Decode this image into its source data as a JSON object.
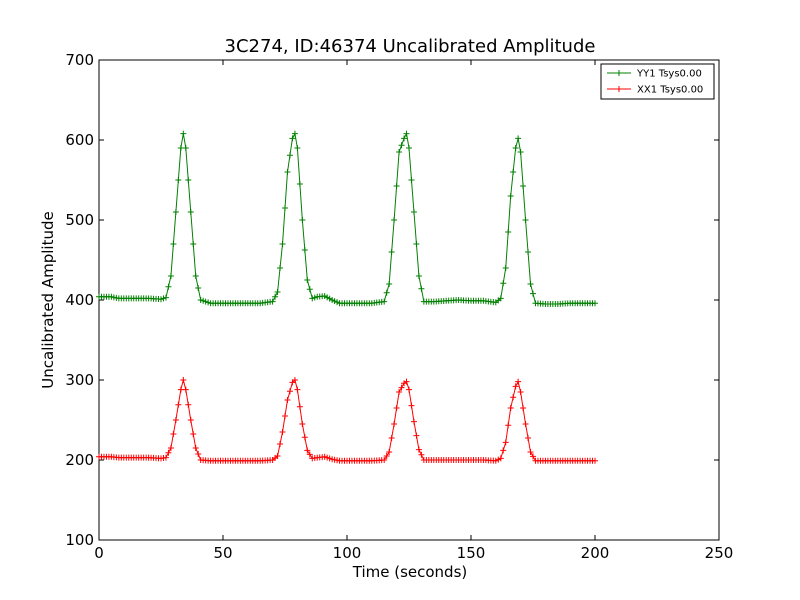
{
  "chart_data": {
    "type": "line",
    "title": "3C274, ID:46374 Uncalibrated Amplitude",
    "xlabel": "Time (seconds)",
    "ylabel": "Uncalibrated Amplitude",
    "xlim": [
      0,
      250
    ],
    "ylim": [
      100,
      700
    ],
    "xticks": [
      "0",
      "50",
      "100",
      "150",
      "200",
      "250"
    ],
    "yticks": [
      "100",
      "200",
      "300",
      "400",
      "500",
      "600",
      "700"
    ],
    "grid": false,
    "legend_position": "top-right",
    "marker": "+",
    "series": [
      {
        "name": "YY1 Tsys0.00",
        "color": "#008000",
        "x": [
          0,
          5,
          8,
          10,
          15,
          20,
          25,
          27,
          29,
          31,
          33,
          34,
          35,
          37,
          39,
          41,
          45,
          50,
          55,
          60,
          65,
          70,
          72,
          74,
          76,
          78,
          79,
          80,
          82,
          84,
          86,
          88,
          91,
          94,
          97,
          100,
          105,
          110,
          115,
          117,
          119,
          121,
          123,
          124,
          125,
          127,
          129,
          131,
          135,
          140,
          145,
          150,
          155,
          160,
          162,
          164,
          166,
          168,
          169,
          170,
          172,
          174,
          176,
          180,
          185,
          190,
          195,
          200
        ],
        "y": [
          404,
          404,
          402,
          402,
          402,
          402,
          401,
          403,
          430,
          510,
          590,
          608,
          590,
          510,
          430,
          400,
          396,
          396,
          396,
          396,
          396,
          398,
          410,
          470,
          560,
          602,
          608,
          590,
          500,
          425,
          402,
          404,
          405,
          400,
          396,
          396,
          396,
          396,
          398,
          420,
          500,
          585,
          602,
          608,
          590,
          510,
          430,
          398,
          398,
          399,
          400,
          399,
          399,
          397,
          402,
          440,
          530,
          590,
          602,
          585,
          500,
          420,
          396,
          395,
          395,
          396,
          396,
          396
        ]
      },
      {
        "name": "XX1 Tsys0.00",
        "color": "#ff0000",
        "x": [
          0,
          5,
          8,
          10,
          15,
          20,
          25,
          27,
          29,
          31,
          33,
          34,
          35,
          37,
          39,
          41,
          45,
          50,
          55,
          60,
          65,
          70,
          72,
          74,
          76,
          78,
          79,
          80,
          82,
          84,
          86,
          88,
          91,
          94,
          97,
          100,
          105,
          110,
          115,
          117,
          119,
          121,
          123,
          124,
          125,
          127,
          129,
          131,
          135,
          140,
          145,
          150,
          155,
          160,
          162,
          164,
          166,
          168,
          169,
          170,
          172,
          174,
          176,
          180,
          185,
          190,
          195,
          200
        ],
        "y": [
          204,
          204,
          203,
          203,
          203,
          203,
          202,
          203,
          215,
          250,
          288,
          300,
          288,
          250,
          215,
          200,
          199,
          199,
          199,
          199,
          199,
          200,
          205,
          235,
          275,
          297,
          300,
          288,
          245,
          212,
          202,
          203,
          204,
          201,
          199,
          199,
          199,
          199,
          200,
          210,
          245,
          285,
          296,
          298,
          288,
          248,
          213,
          200,
          200,
          200,
          200,
          200,
          200,
          199,
          202,
          222,
          265,
          292,
          298,
          285,
          245,
          210,
          199,
          199,
          199,
          199,
          199,
          199
        ]
      }
    ]
  }
}
